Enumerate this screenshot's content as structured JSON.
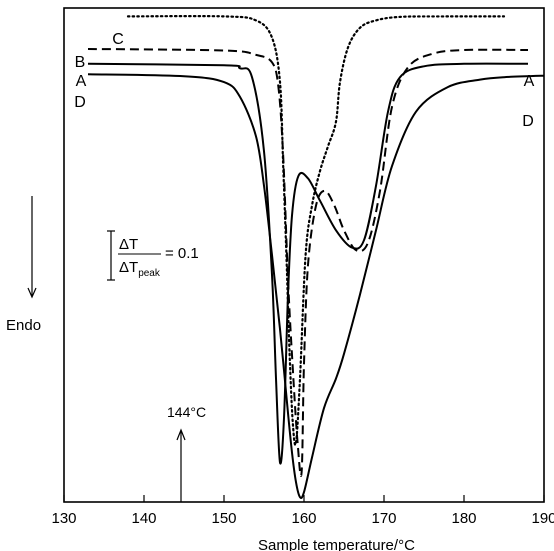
{
  "chart_data": {
    "type": "line",
    "xlabel": "Sample temperature/°C",
    "ylabel": "Endo",
    "xlim": [
      130,
      190
    ],
    "ylim": [
      0,
      1
    ],
    "xticks": [
      130,
      140,
      150,
      160,
      170,
      180,
      190
    ],
    "xtick_labels": [
      "130",
      "140",
      "150",
      "160",
      "170",
      "180",
      "190"
    ],
    "grid": false,
    "annotations": {
      "marker_label": "144°C",
      "marker_x": 144,
      "scale_bar": {
        "numerator": "ΔT",
        "denominator": "ΔT",
        "denominator_subscript": "peak",
        "value": "= 0.1",
        "length": 0.1
      }
    },
    "series": [
      {
        "name": "A",
        "style": "solid",
        "x": [
          133,
          150,
          152,
          153.5,
          155,
          156,
          156.5,
          157,
          157.5,
          158,
          158.5,
          159.3,
          160.5,
          162,
          164,
          166,
          167.5,
          169,
          170.5,
          172,
          175,
          180,
          188
        ],
        "y": [
          0.887,
          0.884,
          0.878,
          0.86,
          0.71,
          0.46,
          0.25,
          0.08,
          0.17,
          0.42,
          0.58,
          0.66,
          0.655,
          0.61,
          0.55,
          0.515,
          0.53,
          0.64,
          0.79,
          0.86,
          0.882,
          0.887,
          0.887
        ],
        "end_labels": [
          "A",
          "A"
        ]
      },
      {
        "name": "B",
        "style": "dashed",
        "x": [
          133,
          150,
          154,
          156,
          156.8,
          157.4,
          158,
          158.6,
          159.2,
          159.7,
          160,
          160.5,
          161.5,
          162.6,
          163.8,
          165,
          166.5,
          168,
          169.5,
          171,
          173,
          176,
          180,
          188
        ],
        "y": [
          0.917,
          0.914,
          0.905,
          0.89,
          0.84,
          0.7,
          0.45,
          0.27,
          0.12,
          0.06,
          0.28,
          0.48,
          0.6,
          0.63,
          0.6,
          0.55,
          0.51,
          0.525,
          0.63,
          0.8,
          0.88,
          0.907,
          0.915,
          0.915
        ],
        "end_labels": [
          "B"
        ]
      },
      {
        "name": "C",
        "style": "dotted",
        "x": [
          138,
          150,
          154,
          156,
          157,
          157.4,
          157.8,
          158.2,
          158.6,
          159,
          159.5,
          160.2,
          161,
          162,
          163,
          164,
          164.5,
          165.5,
          167,
          169,
          172,
          178,
          185
        ],
        "y": [
          0.983,
          0.983,
          0.975,
          0.94,
          0.85,
          0.68,
          0.5,
          0.3,
          0.16,
          0.12,
          0.25,
          0.5,
          0.6,
          0.67,
          0.72,
          0.77,
          0.85,
          0.92,
          0.96,
          0.975,
          0.982,
          0.983,
          0.983
        ],
        "end_labels": [
          "C"
        ]
      },
      {
        "name": "D",
        "style": "solid",
        "x": [
          133,
          145,
          150,
          152,
          154,
          155,
          156,
          157,
          158,
          158.5,
          159,
          159.5,
          160,
          161,
          162.5,
          164,
          165,
          167,
          169,
          171,
          174,
          178,
          182,
          185,
          190
        ],
        "y": [
          0.866,
          0.862,
          0.85,
          0.82,
          0.74,
          0.64,
          0.5,
          0.35,
          0.18,
          0.1,
          0.04,
          0.01,
          0.02,
          0.09,
          0.19,
          0.25,
          0.3,
          0.42,
          0.55,
          0.68,
          0.79,
          0.84,
          0.855,
          0.86,
          0.863
        ],
        "end_labels": [
          "D",
          "D"
        ]
      }
    ]
  }
}
